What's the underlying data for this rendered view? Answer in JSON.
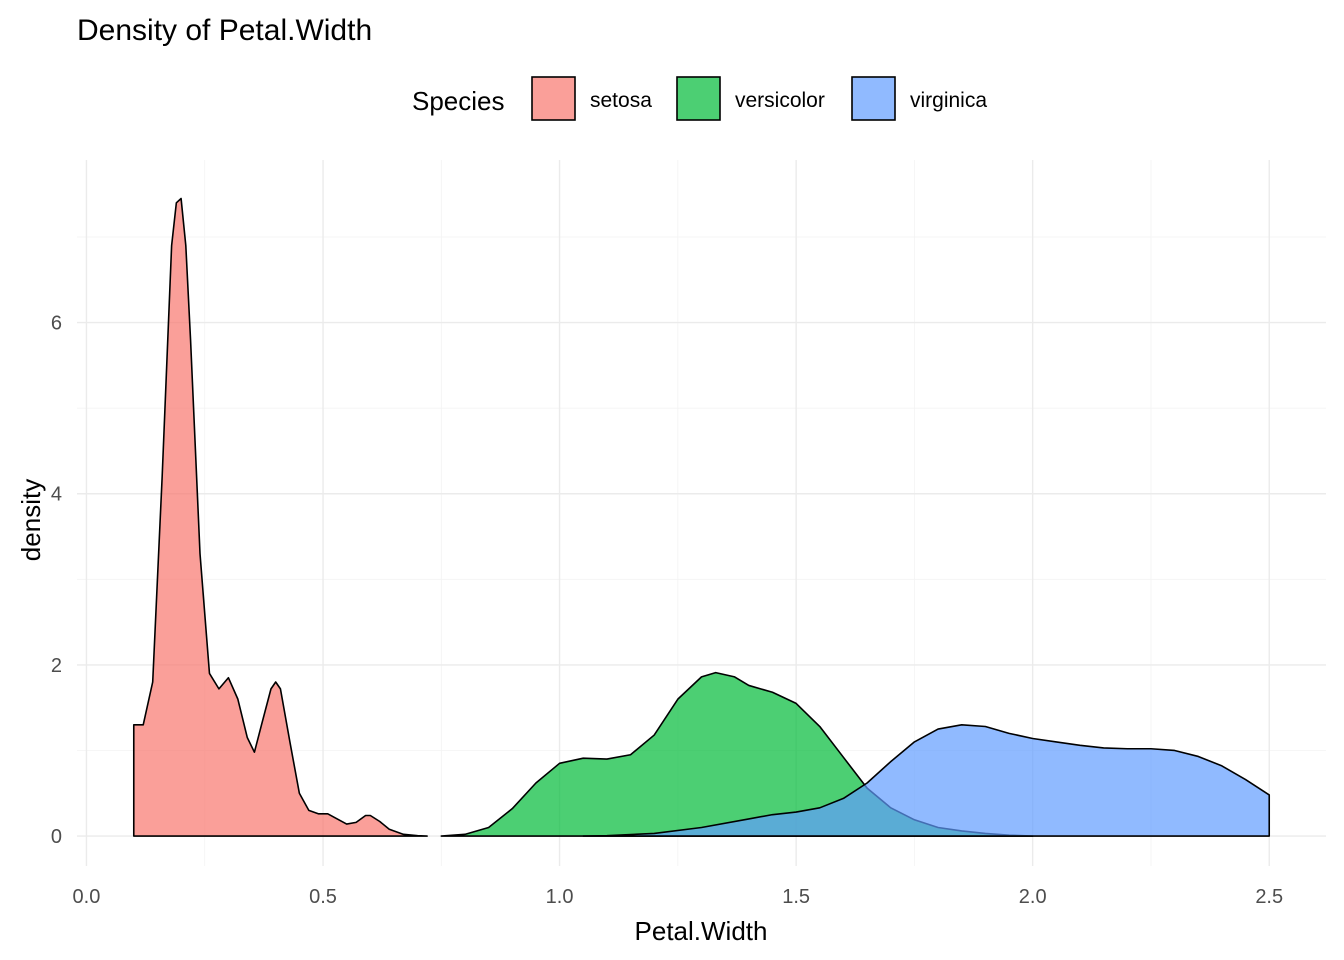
{
  "chart_data": {
    "type": "area",
    "title": "Density of Petal.Width",
    "xlabel": "Petal.Width",
    "ylabel": "density",
    "xlim": [
      -0.02,
      2.62
    ],
    "ylim": [
      -0.35,
      7.9
    ],
    "x_ticks": [
      0.0,
      0.5,
      1.0,
      1.5,
      2.0,
      2.5
    ],
    "x_tick_labels": [
      "0.0",
      "0.5",
      "1.0",
      "1.5",
      "2.0",
      "2.5"
    ],
    "y_ticks": [
      0,
      2,
      4,
      6
    ],
    "y_tick_labels": [
      "0",
      "2",
      "4",
      "6"
    ],
    "grid": true,
    "legend": {
      "title": "Species",
      "position": "top"
    },
    "series": [
      {
        "name": "setosa",
        "color": "#F8766D",
        "x": [
          0.1,
          0.12,
          0.14,
          0.16,
          0.18,
          0.19,
          0.2,
          0.21,
          0.22,
          0.24,
          0.26,
          0.28,
          0.3,
          0.32,
          0.34,
          0.355,
          0.37,
          0.39,
          0.4,
          0.41,
          0.43,
          0.45,
          0.47,
          0.49,
          0.51,
          0.53,
          0.55,
          0.57,
          0.59,
          0.6,
          0.62,
          0.64,
          0.67,
          0.7,
          0.72
        ],
        "y": [
          1.3,
          1.3,
          1.8,
          4.2,
          6.9,
          7.4,
          7.45,
          6.9,
          5.8,
          3.3,
          1.9,
          1.72,
          1.85,
          1.6,
          1.15,
          0.98,
          1.3,
          1.72,
          1.8,
          1.72,
          1.1,
          0.5,
          0.3,
          0.26,
          0.26,
          0.2,
          0.14,
          0.16,
          0.24,
          0.24,
          0.17,
          0.08,
          0.02,
          0.005,
          0.0
        ]
      },
      {
        "name": "versicolor",
        "color": "#00BA38",
        "x": [
          0.75,
          0.8,
          0.85,
          0.9,
          0.95,
          1.0,
          1.05,
          1.1,
          1.15,
          1.2,
          1.25,
          1.3,
          1.33,
          1.37,
          1.4,
          1.45,
          1.5,
          1.55,
          1.6,
          1.65,
          1.7,
          1.75,
          1.8,
          1.85,
          1.9,
          1.95,
          2.0
        ],
        "y": [
          0.0,
          0.02,
          0.1,
          0.32,
          0.62,
          0.85,
          0.91,
          0.9,
          0.95,
          1.18,
          1.6,
          1.86,
          1.91,
          1.86,
          1.76,
          1.68,
          1.55,
          1.28,
          0.92,
          0.56,
          0.33,
          0.19,
          0.1,
          0.06,
          0.03,
          0.01,
          0.0
        ]
      },
      {
        "name": "virginica",
        "color": "#619CFF",
        "x": [
          1.05,
          1.1,
          1.2,
          1.3,
          1.4,
          1.45,
          1.5,
          1.55,
          1.6,
          1.65,
          1.7,
          1.75,
          1.8,
          1.85,
          1.9,
          1.95,
          2.0,
          2.05,
          2.1,
          2.15,
          2.2,
          2.25,
          2.3,
          2.35,
          2.4,
          2.45,
          2.5
        ],
        "y": [
          0.0,
          0.005,
          0.03,
          0.1,
          0.2,
          0.25,
          0.28,
          0.33,
          0.44,
          0.62,
          0.87,
          1.1,
          1.25,
          1.3,
          1.28,
          1.2,
          1.14,
          1.1,
          1.06,
          1.03,
          1.02,
          1.02,
          1.0,
          0.93,
          0.82,
          0.66,
          0.48
        ]
      }
    ]
  }
}
